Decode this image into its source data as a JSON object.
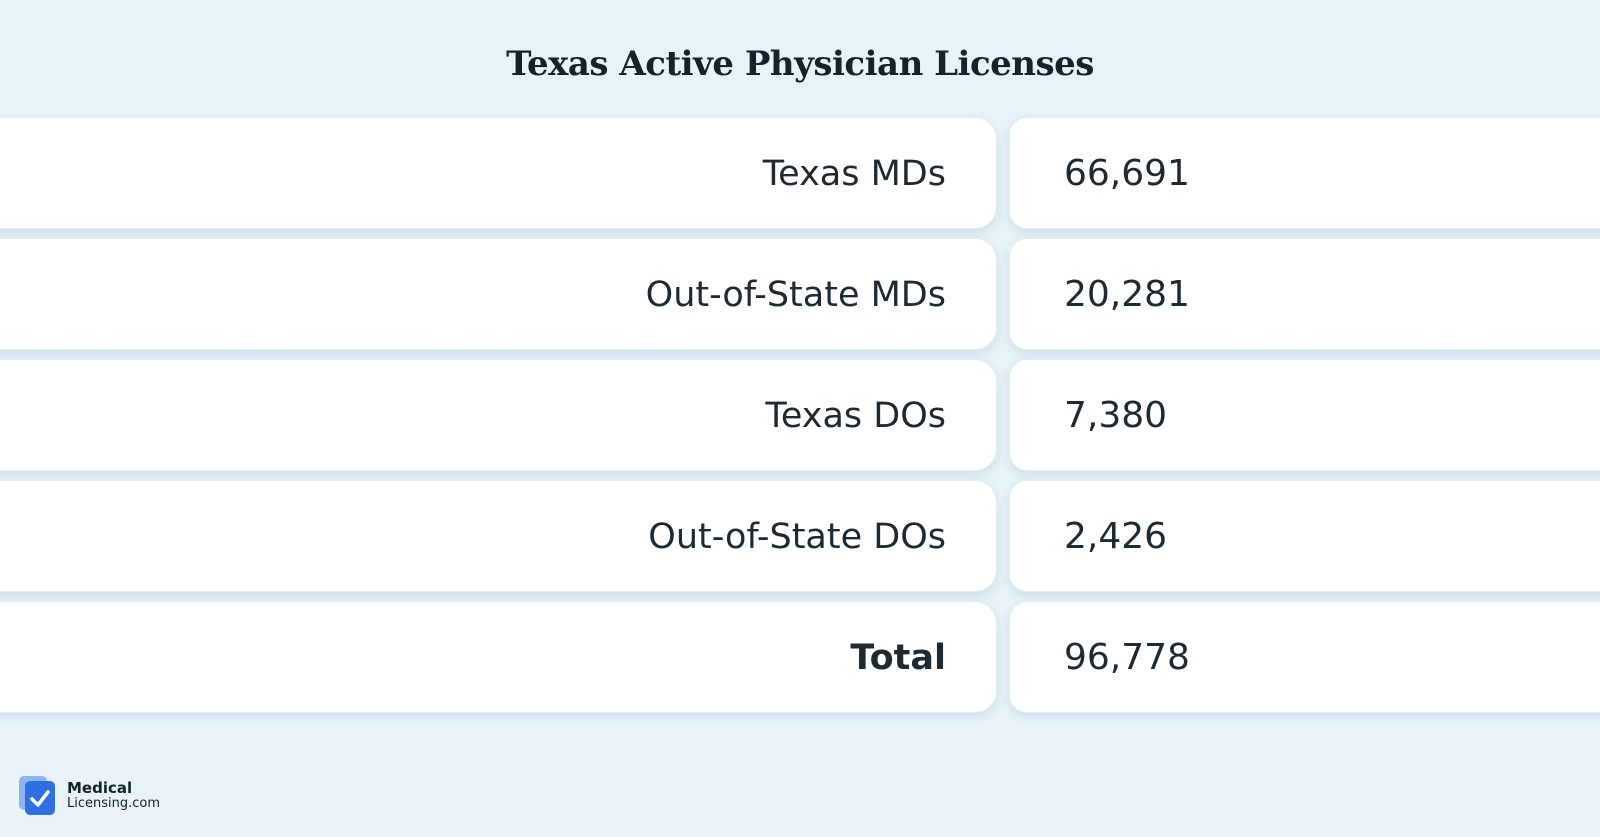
{
  "chart_data": {
    "type": "table",
    "title": "Texas Active Physician Licenses",
    "rows": [
      {
        "label": "Texas MDs",
        "value": "66,691",
        "bold": false
      },
      {
        "label": "Out-of-State MDs",
        "value": "20,281",
        "bold": false
      },
      {
        "label": "Texas DOs",
        "value": "7,380",
        "bold": false
      },
      {
        "label": "Out-of-State DOs",
        "value": "2,426",
        "bold": false
      },
      {
        "label": "Total",
        "value": "96,778",
        "bold": true
      }
    ]
  },
  "logo": {
    "line1": "Medical",
    "line2": "Licensing.com",
    "icon": "check-document-icon",
    "color_primary": "#2f6fe4",
    "color_secondary": "#8fb4f3"
  },
  "colors": {
    "background": "#e8f3f8",
    "cell": "#ffffff",
    "text": "#1e2a33"
  }
}
